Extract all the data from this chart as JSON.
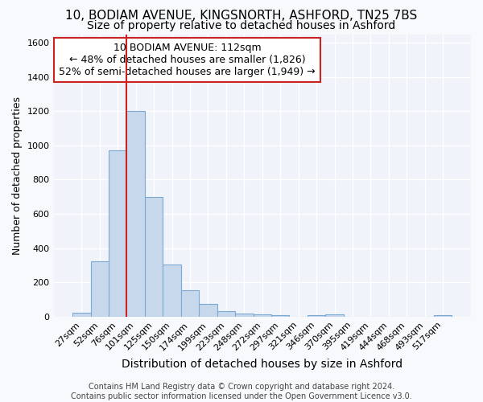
{
  "title1": "10, BODIAM AVENUE, KINGSNORTH, ASHFORD, TN25 7BS",
  "title2": "Size of property relative to detached houses in Ashford",
  "xlabel": "Distribution of detached houses by size in Ashford",
  "ylabel": "Number of detached properties",
  "bar_labels": [
    "27sqm",
    "52sqm",
    "76sqm",
    "101sqm",
    "125sqm",
    "150sqm",
    "174sqm",
    "199sqm",
    "223sqm",
    "248sqm",
    "272sqm",
    "297sqm",
    "321sqm",
    "346sqm",
    "370sqm",
    "395sqm",
    "419sqm",
    "444sqm",
    "468sqm",
    "493sqm",
    "517sqm"
  ],
  "bar_values": [
    25,
    325,
    970,
    1200,
    700,
    305,
    155,
    75,
    30,
    20,
    15,
    10,
    0,
    10,
    15,
    0,
    0,
    0,
    0,
    0,
    10
  ],
  "bar_color": "#c8d8ec",
  "bar_edge_color": "#7aaad4",
  "red_line_index": 3,
  "annotation_text": "10 BODIAM AVENUE: 112sqm\n← 48% of detached houses are smaller (1,826)\n52% of semi-detached houses are larger (1,949) →",
  "annotation_box_facecolor": "#ffffff",
  "annotation_box_edgecolor": "#cc2222",
  "footer_text": "Contains HM Land Registry data © Crown copyright and database right 2024.\nContains public sector information licensed under the Open Government Licence v3.0.",
  "ylim": [
    0,
    1650
  ],
  "yticks": [
    0,
    200,
    400,
    600,
    800,
    1000,
    1200,
    1400,
    1600
  ],
  "plot_bg_color": "#f0f4fa",
  "fig_bg_color": "#f8f9fc",
  "grid_color": "#ffffff",
  "title1_fontsize": 11,
  "title2_fontsize": 10,
  "ylabel_fontsize": 9,
  "xlabel_fontsize": 10,
  "tick_fontsize": 8,
  "annot_fontsize": 9,
  "footer_fontsize": 7
}
